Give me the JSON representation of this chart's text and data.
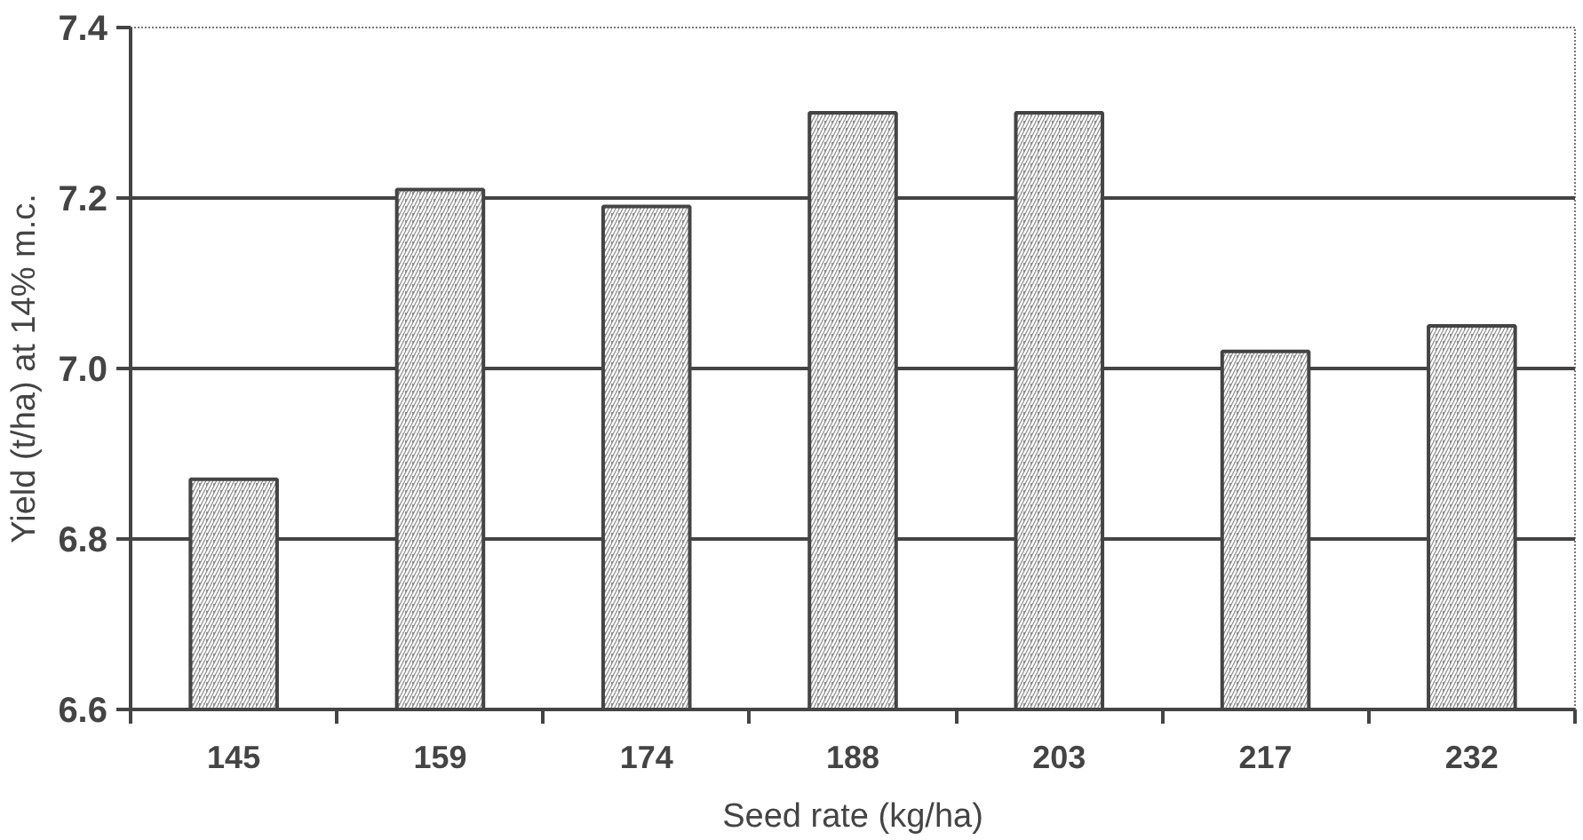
{
  "chart_data": {
    "type": "bar",
    "xlabel": "Seed rate (kg/ha)",
    "ylabel": "Yield (t/ha) at 14% m.c.",
    "categories": [
      "145",
      "159",
      "174",
      "188",
      "203",
      "217",
      "232"
    ],
    "values": [
      6.87,
      7.21,
      7.19,
      7.3,
      7.3,
      7.02,
      7.05
    ],
    "color": "#8c8c8c",
    "ylim": [
      6.6,
      7.4
    ],
    "yticks": [
      {
        "value": 6.6,
        "label": "6.6"
      },
      {
        "value": 6.8,
        "label": "6.8"
      },
      {
        "value": 7.0,
        "label": "7.0"
      },
      {
        "value": 7.2,
        "label": "7.2"
      },
      {
        "value": 7.4,
        "label": "7.4"
      }
    ],
    "grid": "y"
  }
}
